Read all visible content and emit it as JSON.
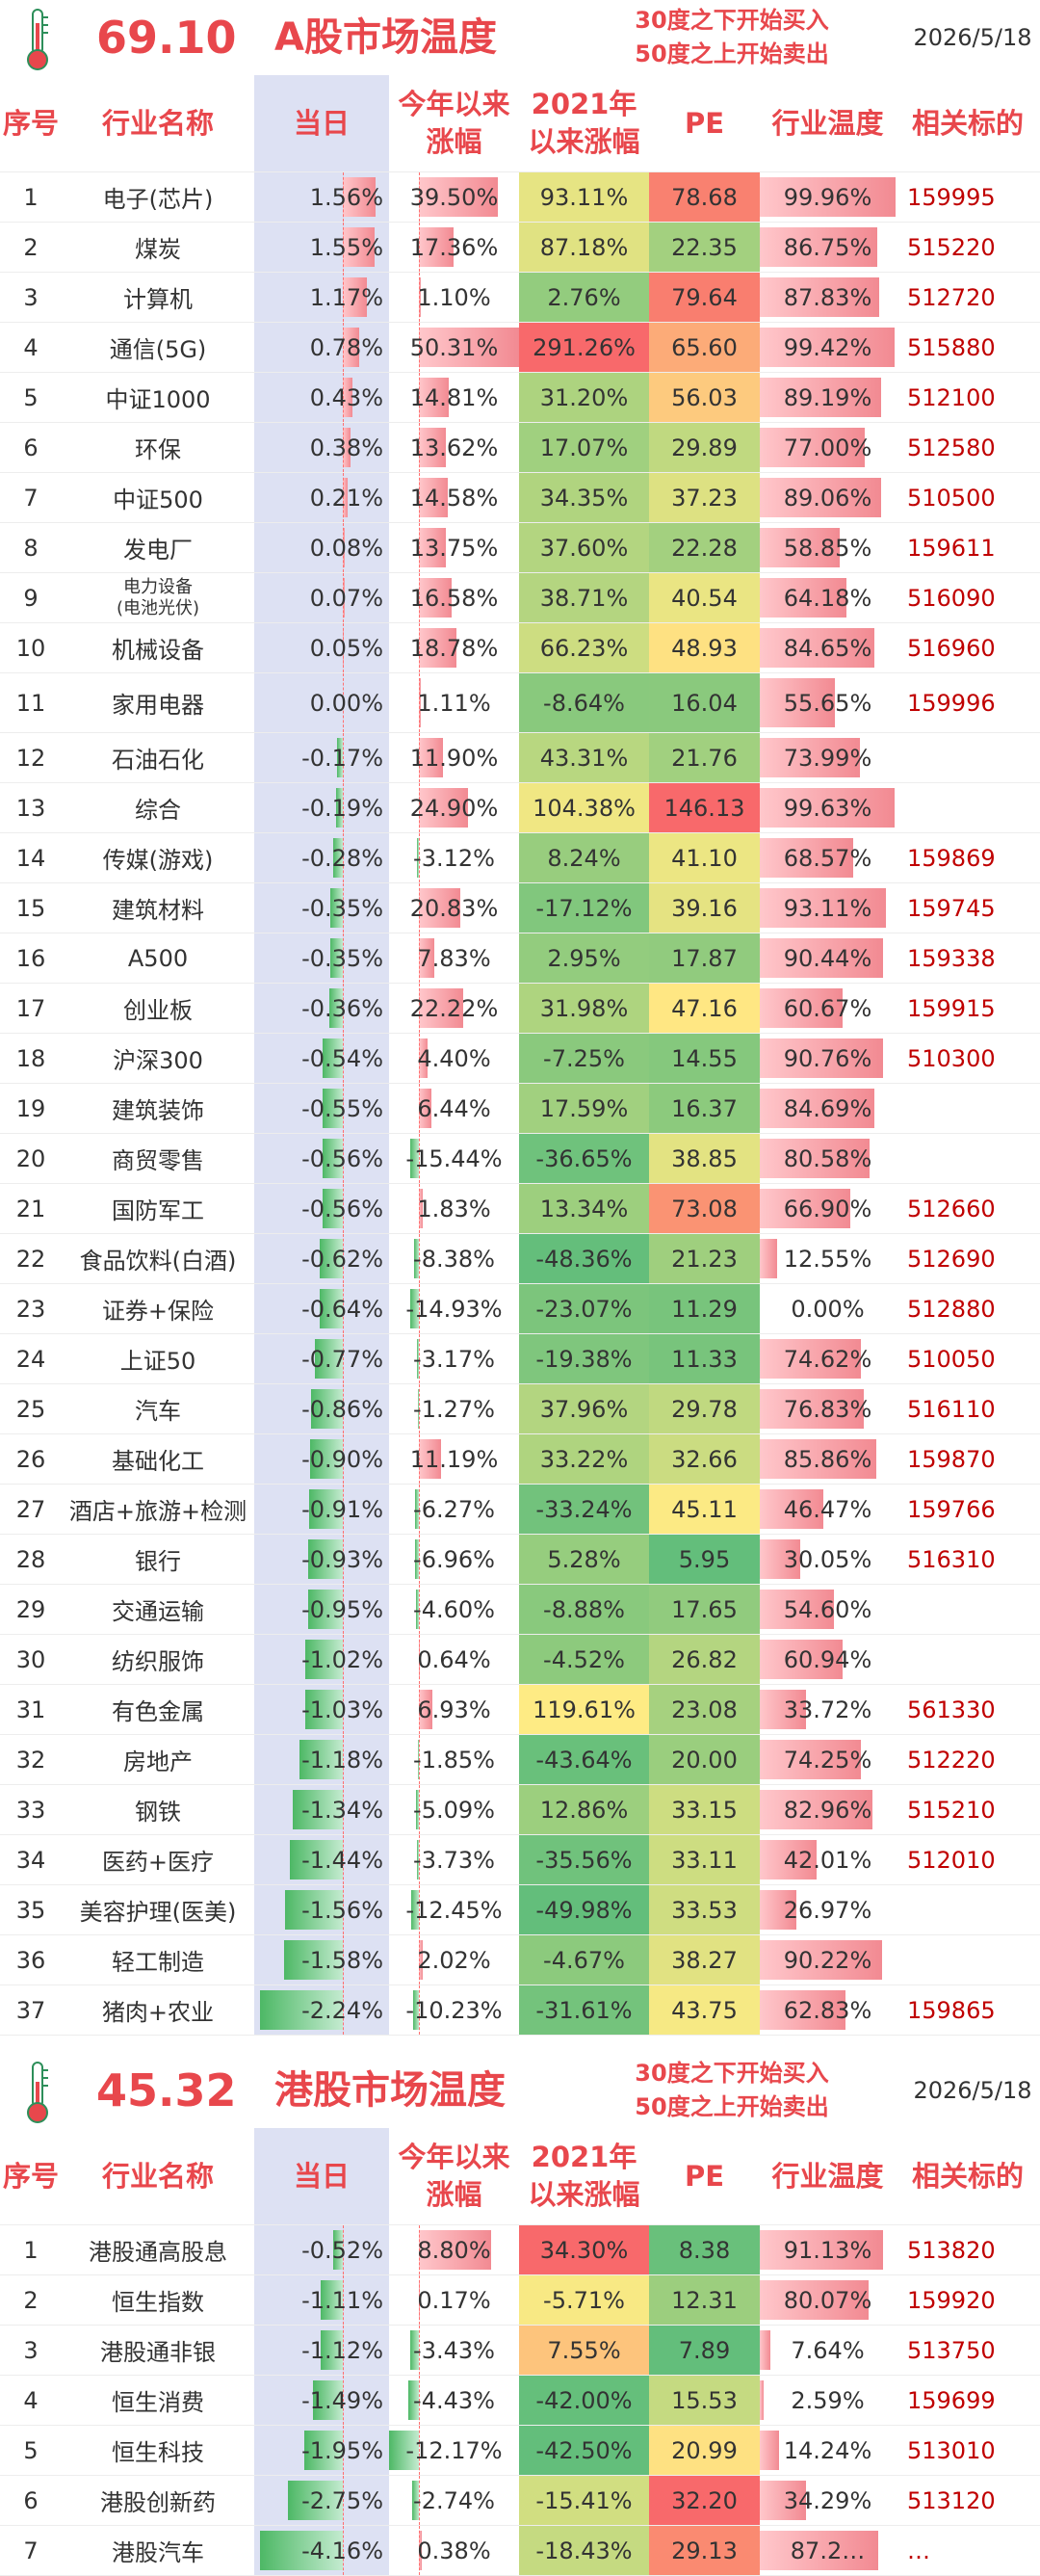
{
  "a_share": {
    "temperature": "69.10",
    "title": "A股市场温度",
    "rule_buy": "30度之下开始买入",
    "rule_sell": "50度之上开始卖出",
    "date": "2026/5/18",
    "headers": {
      "no": "序号",
      "name": "行业名称",
      "day": "当日",
      "ytd": "今年以来涨幅",
      "since2021": "2021年以来涨幅",
      "pe": "PE",
      "industry_temp": "行业温度",
      "code": "相关标的"
    },
    "rows": [
      {
        "no": "1",
        "name": "电子(芯片)",
        "day": "1.56%",
        "ytd": "39.50%",
        "since2021": "93.11%",
        "pe": "78.68",
        "temp": "99.96%",
        "code": "159995",
        "day_v": 1.56,
        "ytd_v": 39.5,
        "since_v": 93.11,
        "pe_v": 78.68,
        "temp_v": 99.96
      },
      {
        "no": "2",
        "name": "煤炭",
        "day": "1.55%",
        "ytd": "17.36%",
        "since2021": "87.18%",
        "pe": "22.35",
        "temp": "86.75%",
        "code": "515220",
        "day_v": 1.55,
        "ytd_v": 17.36,
        "since_v": 87.18,
        "pe_v": 22.35,
        "temp_v": 86.75
      },
      {
        "no": "3",
        "name": "计算机",
        "day": "1.17%",
        "ytd": "1.10%",
        "since2021": "2.76%",
        "pe": "79.64",
        "temp": "87.83%",
        "code": "512720",
        "day_v": 1.17,
        "ytd_v": 1.1,
        "since_v": 2.76,
        "pe_v": 79.64,
        "temp_v": 87.83
      },
      {
        "no": "4",
        "name": "通信(5G)",
        "day": "0.78%",
        "ytd": "50.31%",
        "since2021": "291.26%",
        "pe": "65.60",
        "temp": "99.42%",
        "code": "515880",
        "day_v": 0.78,
        "ytd_v": 50.31,
        "since_v": 291.26,
        "pe_v": 65.6,
        "temp_v": 99.42
      },
      {
        "no": "5",
        "name": "中证1000",
        "day": "0.43%",
        "ytd": "14.81%",
        "since2021": "31.20%",
        "pe": "56.03",
        "temp": "89.19%",
        "code": "512100",
        "day_v": 0.43,
        "ytd_v": 14.81,
        "since_v": 31.2,
        "pe_v": 56.03,
        "temp_v": 89.19
      },
      {
        "no": "6",
        "name": "环保",
        "day": "0.38%",
        "ytd": "13.62%",
        "since2021": "17.07%",
        "pe": "29.89",
        "temp": "77.00%",
        "code": "512580",
        "day_v": 0.38,
        "ytd_v": 13.62,
        "since_v": 17.07,
        "pe_v": 29.89,
        "temp_v": 77.0
      },
      {
        "no": "7",
        "name": "中证500",
        "day": "0.21%",
        "ytd": "14.58%",
        "since2021": "34.35%",
        "pe": "37.23",
        "temp": "89.06%",
        "code": "510500",
        "day_v": 0.21,
        "ytd_v": 14.58,
        "since_v": 34.35,
        "pe_v": 37.23,
        "temp_v": 89.06
      },
      {
        "no": "8",
        "name": "发电厂",
        "day": "0.08%",
        "ytd": "13.75%",
        "since2021": "37.60%",
        "pe": "22.28",
        "temp": "58.85%",
        "code": "159611",
        "day_v": 0.08,
        "ytd_v": 13.75,
        "since_v": 37.6,
        "pe_v": 22.28,
        "temp_v": 58.85
      },
      {
        "no": "9",
        "name": "电力设备\n(电池光伏)",
        "day": "0.07%",
        "ytd": "16.58%",
        "since2021": "38.71%",
        "pe": "40.54",
        "temp": "64.18%",
        "code": "516090",
        "day_v": 0.07,
        "ytd_v": 16.58,
        "since_v": 38.71,
        "pe_v": 40.54,
        "temp_v": 64.18,
        "small": true
      },
      {
        "no": "10",
        "name": "机械设备",
        "day": "0.05%",
        "ytd": "18.78%",
        "since2021": "66.23%",
        "pe": "48.93",
        "temp": "84.65%",
        "code": "516960",
        "day_v": 0.05,
        "ytd_v": 18.78,
        "since_v": 66.23,
        "pe_v": 48.93,
        "temp_v": 84.65
      },
      {
        "no": "11",
        "name": "家用电器",
        "day": "0.00%",
        "ytd": "1.11%",
        "since2021": "-8.64%",
        "pe": "16.04",
        "temp": "55.65%",
        "code": "159996",
        "day_v": 0.0,
        "ytd_v": 1.11,
        "since_v": -8.64,
        "pe_v": 16.04,
        "temp_v": 55.65,
        "tall": true
      },
      {
        "no": "12",
        "name": "石油石化",
        "day": "-0.17%",
        "ytd": "11.90%",
        "since2021": "43.31%",
        "pe": "21.76",
        "temp": "73.99%",
        "code": "",
        "day_v": -0.17,
        "ytd_v": 11.9,
        "since_v": 43.31,
        "pe_v": 21.76,
        "temp_v": 73.99
      },
      {
        "no": "13",
        "name": "综合",
        "day": "-0.19%",
        "ytd": "24.90%",
        "since2021": "104.38%",
        "pe": "146.13",
        "temp": "99.63%",
        "code": "",
        "day_v": -0.19,
        "ytd_v": 24.9,
        "since_v": 104.38,
        "pe_v": 146.13,
        "temp_v": 99.63
      },
      {
        "no": "14",
        "name": "传媒(游戏)",
        "day": "-0.28%",
        "ytd": "-3.12%",
        "since2021": "8.24%",
        "pe": "41.10",
        "temp": "68.57%",
        "code": "159869",
        "day_v": -0.28,
        "ytd_v": -3.12,
        "since_v": 8.24,
        "pe_v": 41.1,
        "temp_v": 68.57
      },
      {
        "no": "15",
        "name": "建筑材料",
        "day": "-0.35%",
        "ytd": "20.83%",
        "since2021": "-17.12%",
        "pe": "39.16",
        "temp": "93.11%",
        "code": "159745",
        "day_v": -0.35,
        "ytd_v": 20.83,
        "since_v": -17.12,
        "pe_v": 39.16,
        "temp_v": 93.11
      },
      {
        "no": "16",
        "name": "A500",
        "day": "-0.35%",
        "ytd": "7.83%",
        "since2021": "2.95%",
        "pe": "17.87",
        "temp": "90.44%",
        "code": "159338",
        "day_v": -0.35,
        "ytd_v": 7.83,
        "since_v": 2.95,
        "pe_v": 17.87,
        "temp_v": 90.44
      },
      {
        "no": "17",
        "name": "创业板",
        "day": "-0.36%",
        "ytd": "22.22%",
        "since2021": "31.98%",
        "pe": "47.16",
        "temp": "60.67%",
        "code": "159915",
        "day_v": -0.36,
        "ytd_v": 22.22,
        "since_v": 31.98,
        "pe_v": 47.16,
        "temp_v": 60.67
      },
      {
        "no": "18",
        "name": "沪深300",
        "day": "-0.54%",
        "ytd": "4.40%",
        "since2021": "-7.25%",
        "pe": "14.55",
        "temp": "90.76%",
        "code": "510300",
        "day_v": -0.54,
        "ytd_v": 4.4,
        "since_v": -7.25,
        "pe_v": 14.55,
        "temp_v": 90.76
      },
      {
        "no": "19",
        "name": "建筑装饰",
        "day": "-0.55%",
        "ytd": "6.44%",
        "since2021": "17.59%",
        "pe": "16.37",
        "temp": "84.69%",
        "code": "",
        "day_v": -0.55,
        "ytd_v": 6.44,
        "since_v": 17.59,
        "pe_v": 16.37,
        "temp_v": 84.69
      },
      {
        "no": "20",
        "name": "商贸零售",
        "day": "-0.56%",
        "ytd": "-15.44%",
        "since2021": "-36.65%",
        "pe": "38.85",
        "temp": "80.58%",
        "code": "",
        "day_v": -0.56,
        "ytd_v": -15.44,
        "since_v": -36.65,
        "pe_v": 38.85,
        "temp_v": 80.58
      },
      {
        "no": "21",
        "name": "国防军工",
        "day": "-0.56%",
        "ytd": "1.83%",
        "since2021": "13.34%",
        "pe": "73.08",
        "temp": "66.90%",
        "code": "512660",
        "day_v": -0.56,
        "ytd_v": 1.83,
        "since_v": 13.34,
        "pe_v": 73.08,
        "temp_v": 66.9
      },
      {
        "no": "22",
        "name": "食品饮料(白酒)",
        "day": "-0.62%",
        "ytd": "-8.38%",
        "since2021": "-48.36%",
        "pe": "21.23",
        "temp": "12.55%",
        "code": "512690",
        "day_v": -0.62,
        "ytd_v": -8.38,
        "since_v": -48.36,
        "pe_v": 21.23,
        "temp_v": 12.55
      },
      {
        "no": "23",
        "name": "证券+保险",
        "day": "-0.64%",
        "ytd": "-14.93%",
        "since2021": "-23.07%",
        "pe": "11.29",
        "temp": "0.00%",
        "code": "512880",
        "day_v": -0.64,
        "ytd_v": -14.93,
        "since_v": -23.07,
        "pe_v": 11.29,
        "temp_v": 0.0
      },
      {
        "no": "24",
        "name": "上证50",
        "day": "-0.77%",
        "ytd": "-3.17%",
        "since2021": "-19.38%",
        "pe": "11.33",
        "temp": "74.62%",
        "code": "510050",
        "day_v": -0.77,
        "ytd_v": -3.17,
        "since_v": -19.38,
        "pe_v": 11.33,
        "temp_v": 74.62
      },
      {
        "no": "25",
        "name": "汽车",
        "day": "-0.86%",
        "ytd": "-1.27%",
        "since2021": "37.96%",
        "pe": "29.78",
        "temp": "76.83%",
        "code": "516110",
        "day_v": -0.86,
        "ytd_v": -1.27,
        "since_v": 37.96,
        "pe_v": 29.78,
        "temp_v": 76.83
      },
      {
        "no": "26",
        "name": "基础化工",
        "day": "-0.90%",
        "ytd": "11.19%",
        "since2021": "33.22%",
        "pe": "32.66",
        "temp": "85.86%",
        "code": "159870",
        "day_v": -0.9,
        "ytd_v": 11.19,
        "since_v": 33.22,
        "pe_v": 32.66,
        "temp_v": 85.86
      },
      {
        "no": "27",
        "name": "酒店+旅游+检测",
        "day": "-0.91%",
        "ytd": "-6.27%",
        "since2021": "-33.24%",
        "pe": "45.11",
        "temp": "46.47%",
        "code": "159766",
        "day_v": -0.91,
        "ytd_v": -6.27,
        "since_v": -33.24,
        "pe_v": 45.11,
        "temp_v": 46.47
      },
      {
        "no": "28",
        "name": "银行",
        "day": "-0.93%",
        "ytd": "-6.96%",
        "since2021": "5.28%",
        "pe": "5.95",
        "temp": "30.05%",
        "code": "516310",
        "day_v": -0.93,
        "ytd_v": -6.96,
        "since_v": 5.28,
        "pe_v": 5.95,
        "temp_v": 30.05
      },
      {
        "no": "29",
        "name": "交通运输",
        "day": "-0.95%",
        "ytd": "-4.60%",
        "since2021": "-8.88%",
        "pe": "17.65",
        "temp": "54.60%",
        "code": "",
        "day_v": -0.95,
        "ytd_v": -4.6,
        "since_v": -8.88,
        "pe_v": 17.65,
        "temp_v": 54.6
      },
      {
        "no": "30",
        "name": "纺织服饰",
        "day": "-1.02%",
        "ytd": "0.64%",
        "since2021": "-4.52%",
        "pe": "26.82",
        "temp": "60.94%",
        "code": "",
        "day_v": -1.02,
        "ytd_v": 0.64,
        "since_v": -4.52,
        "pe_v": 26.82,
        "temp_v": 60.94
      },
      {
        "no": "31",
        "name": "有色金属",
        "day": "-1.03%",
        "ytd": "6.93%",
        "since2021": "119.61%",
        "pe": "23.08",
        "temp": "33.72%",
        "code": "561330",
        "day_v": -1.03,
        "ytd_v": 6.93,
        "since_v": 119.61,
        "pe_v": 23.08,
        "temp_v": 33.72
      },
      {
        "no": "32",
        "name": "房地产",
        "day": "-1.18%",
        "ytd": "-1.85%",
        "since2021": "-43.64%",
        "pe": "20.00",
        "temp": "74.25%",
        "code": "512220",
        "day_v": -1.18,
        "ytd_v": -1.85,
        "since_v": -43.64,
        "pe_v": 20.0,
        "temp_v": 74.25
      },
      {
        "no": "33",
        "name": "钢铁",
        "day": "-1.34%",
        "ytd": "-5.09%",
        "since2021": "12.86%",
        "pe": "33.15",
        "temp": "82.96%",
        "code": "515210",
        "day_v": -1.34,
        "ytd_v": -5.09,
        "since_v": 12.86,
        "pe_v": 33.15,
        "temp_v": 82.96
      },
      {
        "no": "34",
        "name": "医药+医疗",
        "day": "-1.44%",
        "ytd": "-3.73%",
        "since2021": "-35.56%",
        "pe": "33.11",
        "temp": "42.01%",
        "code": "512010",
        "day_v": -1.44,
        "ytd_v": -3.73,
        "since_v": -35.56,
        "pe_v": 33.11,
        "temp_v": 42.01
      },
      {
        "no": "35",
        "name": "美容护理(医美)",
        "day": "-1.56%",
        "ytd": "-12.45%",
        "since2021": "-49.98%",
        "pe": "33.53",
        "temp": "26.97%",
        "code": "",
        "day_v": -1.56,
        "ytd_v": -12.45,
        "since_v": -49.98,
        "pe_v": 33.53,
        "temp_v": 26.97
      },
      {
        "no": "36",
        "name": "轻工制造",
        "day": "-1.58%",
        "ytd": "2.02%",
        "since2021": "-4.67%",
        "pe": "38.27",
        "temp": "90.22%",
        "code": "",
        "day_v": -1.58,
        "ytd_v": 2.02,
        "since_v": -4.67,
        "pe_v": 38.27,
        "temp_v": 90.22
      },
      {
        "no": "37",
        "name": "猪肉+农业",
        "day": "-2.24%",
        "ytd": "-10.23%",
        "since2021": "-31.61%",
        "pe": "43.75",
        "temp": "62.83%",
        "code": "159865",
        "day_v": -2.24,
        "ytd_v": -10.23,
        "since_v": -31.61,
        "pe_v": 43.75,
        "temp_v": 62.83
      }
    ]
  },
  "hk_share": {
    "temperature": "45.32",
    "title": "港股市场温度",
    "rule_buy": "30度之下开始买入",
    "rule_sell": "50度之上开始卖出",
    "date": "2026/5/18",
    "headers": {
      "no": "序号",
      "name": "行业名称",
      "day": "当日",
      "ytd": "今年以来涨幅",
      "since2021": "2021年以来涨幅",
      "pe": "PE",
      "industry_temp": "行业温度",
      "code": "相关标的"
    },
    "rows": [
      {
        "no": "1",
        "name": "港股通高股息",
        "day": "-0.52%",
        "ytd": "8.80%",
        "since2021": "34.30%",
        "pe": "8.38",
        "temp": "91.13%",
        "code": "513820",
        "day_v": -0.52,
        "ytd_v": 8.8,
        "since_v": 34.3,
        "pe_v": 8.38,
        "temp_v": 91.13
      },
      {
        "no": "2",
        "name": "恒生指数",
        "day": "-1.11%",
        "ytd": "0.17%",
        "since2021": "-5.71%",
        "pe": "12.31",
        "temp": "80.07%",
        "code": "159920",
        "day_v": -1.11,
        "ytd_v": 0.17,
        "since_v": -5.71,
        "pe_v": 12.31,
        "temp_v": 80.07
      },
      {
        "no": "3",
        "name": "港股通非银",
        "day": "-1.12%",
        "ytd": "-3.43%",
        "since2021": "7.55%",
        "pe": "7.89",
        "temp": "7.64%",
        "code": "513750",
        "day_v": -1.12,
        "ytd_v": -3.43,
        "since_v": 7.55,
        "pe_v": 7.89,
        "temp_v": 7.64
      },
      {
        "no": "4",
        "name": "恒生消费",
        "day": "-1.49%",
        "ytd": "-4.43%",
        "since2021": "-42.00%",
        "pe": "15.53",
        "temp": "2.59%",
        "code": "159699",
        "day_v": -1.49,
        "ytd_v": -4.43,
        "since_v": -42.0,
        "pe_v": 15.53,
        "temp_v": 2.59
      },
      {
        "no": "5",
        "name": "恒生科技",
        "day": "-1.95%",
        "ytd": "-12.17%",
        "since2021": "-42.50%",
        "pe": "20.99",
        "temp": "14.24%",
        "code": "513010",
        "day_v": -1.95,
        "ytd_v": -12.17,
        "since_v": -42.5,
        "pe_v": 20.99,
        "temp_v": 14.24
      },
      {
        "no": "6",
        "name": "港股创新药",
        "day": "-2.75%",
        "ytd": "-2.74%",
        "since2021": "-15.41%",
        "pe": "32.20",
        "temp": "34.29%",
        "code": "513120",
        "day_v": -2.75,
        "ytd_v": -2.74,
        "since_v": -15.41,
        "pe_v": 32.2,
        "temp_v": 34.29
      },
      {
        "no": "7",
        "name": "港股汽车",
        "day": "-4.16%",
        "ytd": "0.38%",
        "since2021": "-18.43%",
        "pe": "29.13",
        "temp": "87.2…",
        "code": "…",
        "day_v": -4.16,
        "ytd_v": 0.38,
        "since_v": -18.43,
        "pe_v": 29.13,
        "temp_v": 87.2
      }
    ]
  }
}
